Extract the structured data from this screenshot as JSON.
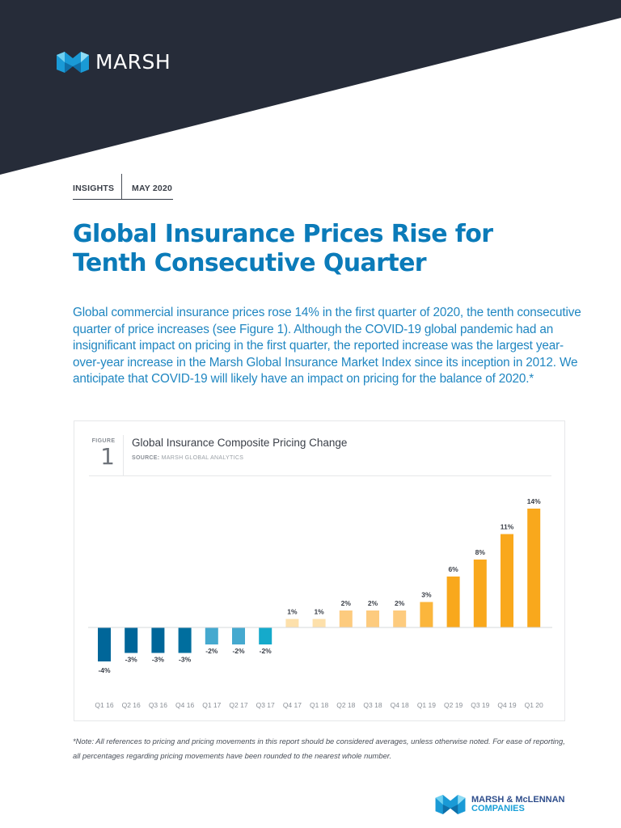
{
  "header": {
    "brand": "MARSH",
    "brand_icon": "marsh-logo-icon",
    "banner_color": "#262c39"
  },
  "meta": {
    "category": "INSIGHTS",
    "date": "MAY 2020"
  },
  "article": {
    "title": "Global Insurance Prices Rise for Tenth Consecutive Quarter",
    "intro": "Global commercial insurance prices rose 14% in the first quarter of 2020, the tenth consecutive quarter of price increases (see Figure 1). Although the COVID-19 global pandemic had an insignificant impact on pricing in the first quarter, the reported increase was the largest year-over-year increase in the Marsh Global Insurance Market Index since its inception in 2012.  We anticipate that COVID-19 will likely have an impact on pricing for the balance of 2020.*",
    "title_color": "#0b7bb9"
  },
  "figure": {
    "label": "FIGURE",
    "number": "1",
    "title": "Global Insurance Composite Pricing Change",
    "source_label": "SOURCE:",
    "source": "MARSH GLOBAL ANALYTICS"
  },
  "chart_data": {
    "type": "bar",
    "title": "Global Insurance Composite Pricing Change",
    "xlabel": "",
    "ylabel": "",
    "grid": false,
    "legend": "none",
    "ylim": [
      -5,
      15
    ],
    "categories": [
      "Q1 16",
      "Q2 16",
      "Q3 16",
      "Q4 16",
      "Q1 17",
      "Q2 17",
      "Q3 17",
      "Q4 17",
      "Q1 18",
      "Q2 18",
      "Q3 18",
      "Q4 18",
      "Q1 19",
      "Q2 19",
      "Q3 19",
      "Q4 19",
      "Q1 20"
    ],
    "values": [
      -4,
      -3,
      -3,
      -3,
      -2,
      -2,
      -2,
      1,
      1,
      2,
      2,
      2,
      3,
      6,
      8,
      11,
      14
    ],
    "data_labels": [
      "-4%",
      "-3%",
      "-3%",
      "-3%",
      "-2%",
      "-2%",
      "-2%",
      "1%",
      "1%",
      "2%",
      "2%",
      "2%",
      "3%",
      "6%",
      "8%",
      "11%",
      "14%"
    ],
    "colors": [
      "#006699",
      "#006699",
      "#006699",
      "#006e9e",
      "#45a9cf",
      "#45a9cf",
      "#15aacb",
      "#fde0ab",
      "#fde0ab",
      "#fdcb7e",
      "#fdcb7e",
      "#fdcb7e",
      "#fbb63c",
      "#f9a81c",
      "#f9a81c",
      "#f9a81c",
      "#f9a81c"
    ]
  },
  "footnote": "*Note: All references to pricing and pricing movements in this report should be considered averages, unless otherwise noted. For ease of reporting, all percentages regarding pricing movements have been rounded to the nearest whole number.",
  "footer": {
    "company_line1": "MARSH & McLENNAN",
    "company_line2": "COMPANIES",
    "company_icon": "mmc-logo-icon"
  }
}
